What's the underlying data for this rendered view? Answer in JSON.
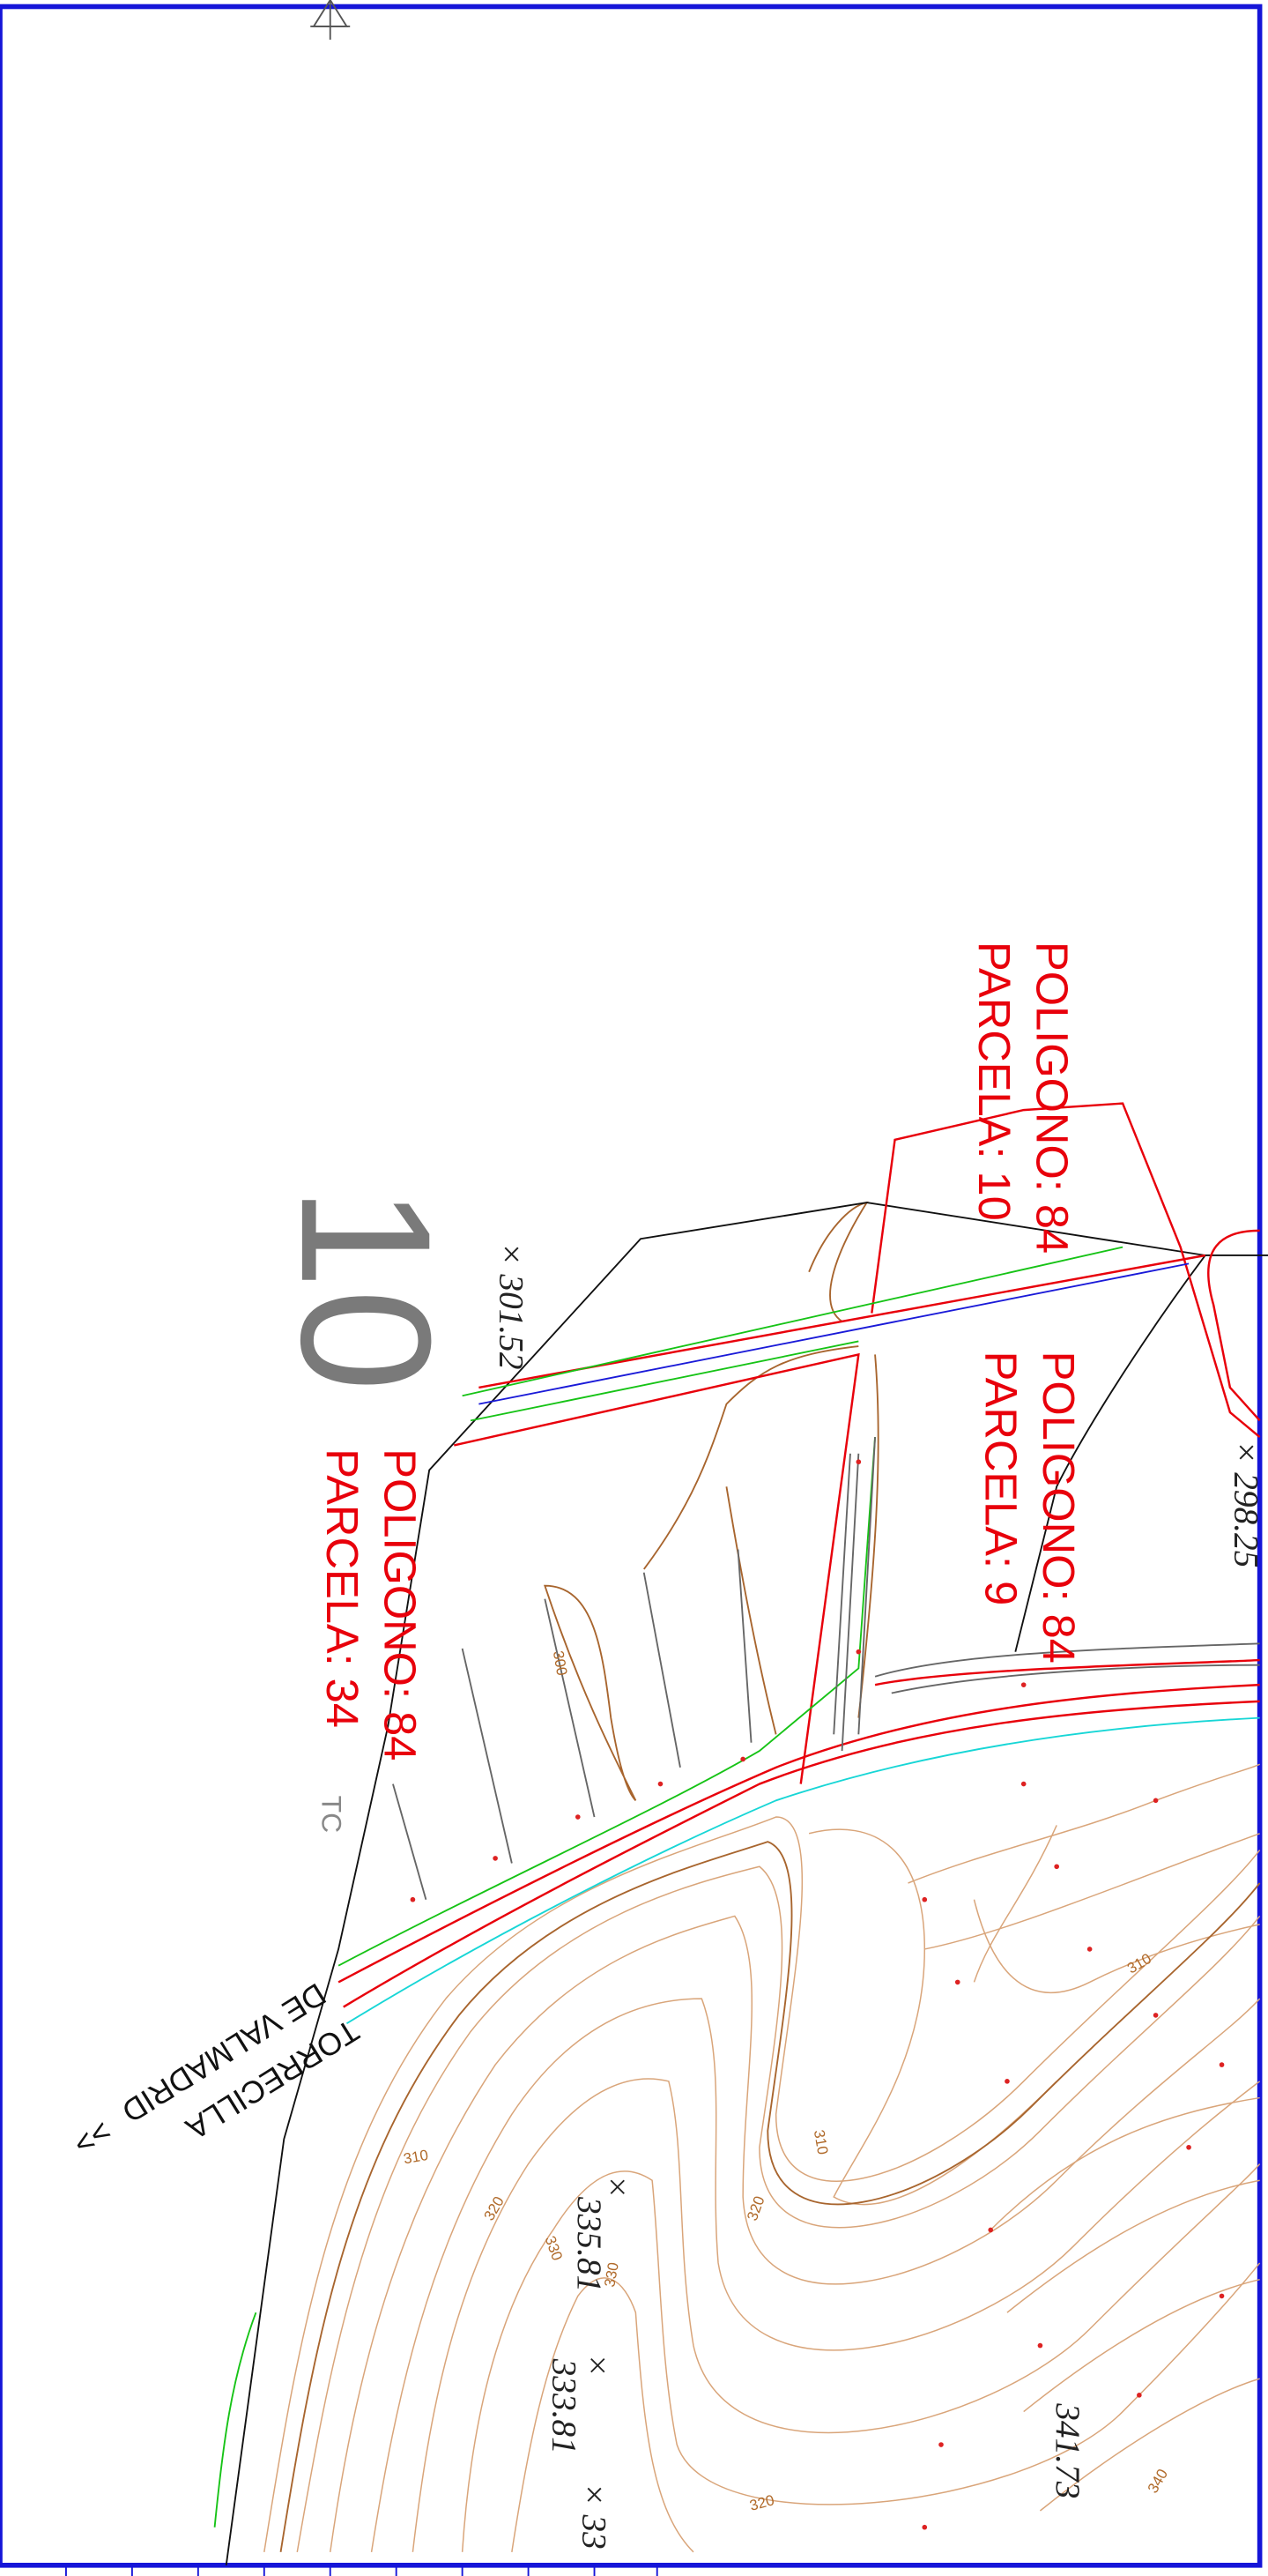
{
  "parcels": [
    {
      "poligono": "POLIGONO: 84",
      "parcela": "PARCELA: 10"
    },
    {
      "poligono": "POLIGONO: 84",
      "parcela": "PARCELA: 9"
    },
    {
      "poligono": "POLIGONO: 84",
      "parcela": "PARCELA: 34"
    }
  ],
  "big_number": "10",
  "spot_heights": [
    "× 301.52",
    "× 298.25",
    "335.81",
    "333.81",
    "341.73",
    "× 33"
  ],
  "road": {
    "line1": "TORRECILLA",
    "line2": "DE VALMADRID",
    "arrow": ">>"
  },
  "tc": "TC",
  "contour_labels": [
    "300",
    "310",
    "310",
    "320",
    "320",
    "330",
    "330",
    "340",
    "310",
    "320"
  ]
}
